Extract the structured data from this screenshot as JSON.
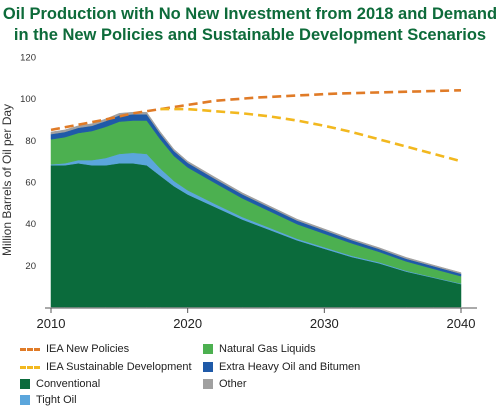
{
  "title_line1": "Oil Production with No New Investment from 2018 and Demand",
  "title_line2": "in the New Policies and Sustainable Development Scenarios",
  "chart_data": {
    "type": "area",
    "title": "Oil Production with No New Investment from 2018 and Demand in the New Policies and Sustainable Development Scenarios",
    "ylabel": "Million Barrels of Oil per Day",
    "xlabel": "",
    "xlim": [
      2010,
      2040
    ],
    "ylim": [
      0,
      120
    ],
    "yticks": [
      20,
      40,
      60,
      80,
      100,
      120
    ],
    "xticks": [
      2010,
      2020,
      2030,
      2040
    ],
    "grid": false,
    "legend_position": "bottom",
    "x": [
      2010,
      2011,
      2012,
      2013,
      2014,
      2015,
      2016,
      2017,
      2018,
      2019,
      2020,
      2022,
      2024,
      2026,
      2028,
      2030,
      2032,
      2034,
      2036,
      2038,
      2040
    ],
    "stacked_series": [
      {
        "name": "Conventional",
        "color": "#0b6b3c",
        "values": [
          68,
          68,
          69,
          68,
          68,
          69,
          69,
          68,
          63,
          58,
          54,
          48,
          42,
          37,
          32,
          28,
          24,
          21,
          17,
          14,
          11
        ]
      },
      {
        "name": "Tight Oil",
        "color": "#5ba6dc",
        "values": [
          0.5,
          1,
          1.5,
          2.5,
          3.5,
          4.5,
          5,
          5.5,
          3.5,
          2.5,
          2,
          1.5,
          1.2,
          1,
          0.8,
          0.7,
          0.6,
          0.5,
          0.4,
          0.3,
          0.3
        ]
      },
      {
        "name": "Natural Gas Liquids",
        "color": "#4cb050",
        "values": [
          12,
          12.5,
          13,
          14,
          15,
          15.5,
          15.5,
          16,
          14,
          12,
          11,
          10,
          9,
          8,
          7,
          6.5,
          6,
          5,
          4.5,
          4,
          3.5
        ]
      },
      {
        "name": "Extra Heavy Oil and Bitumen",
        "color": "#1f5aa8",
        "values": [
          2.5,
          2.5,
          2.5,
          2.5,
          2.8,
          3,
          3,
          3,
          2.7,
          2.4,
          2.2,
          2,
          1.9,
          1.8,
          1.7,
          1.6,
          1.5,
          1.4,
          1.3,
          1.3,
          1.2
        ]
      },
      {
        "name": "Other",
        "color": "#a0a0a0",
        "values": [
          1,
          1,
          1,
          1,
          1,
          1,
          1,
          1,
          0.9,
          0.8,
          0.8,
          0.8,
          0.7,
          0.7,
          0.7,
          0.7,
          0.6,
          0.6,
          0.6,
          0.5,
          0.5
        ]
      }
    ],
    "line_series": [
      {
        "name": "IEA New Policies",
        "color": "#e07b27",
        "dash": "long",
        "x": [
          2010,
          2012,
          2014,
          2016,
          2018,
          2020,
          2022,
          2025,
          2028,
          2031,
          2034,
          2037,
          2040
        ],
        "values": [
          85,
          87.5,
          90,
          93,
          95,
          97,
          99,
          100.5,
          101.5,
          102.5,
          103,
          103.5,
          104
        ]
      },
      {
        "name": "IEA Sustainable Development",
        "color": "#f2b81f",
        "dash": "long",
        "x": [
          2018,
          2020,
          2022,
          2024,
          2026,
          2028,
          2030,
          2032,
          2034,
          2036,
          2038,
          2040
        ],
        "values": [
          95,
          95,
          94,
          93,
          91.5,
          89.5,
          87,
          84,
          80.5,
          77,
          73.5,
          70
        ]
      }
    ]
  },
  "legend": {
    "items": [
      {
        "label": "IEA New Policies",
        "kind": "dash",
        "color": "#e07b27"
      },
      {
        "label": "IEA Sustainable Development",
        "kind": "dash",
        "color": "#f2b81f"
      },
      {
        "label": "Conventional",
        "kind": "box",
        "color": "#0b6b3c"
      },
      {
        "label": "Tight Oil",
        "kind": "box",
        "color": "#5ba6dc"
      },
      {
        "label": "Natural Gas Liquids",
        "kind": "box",
        "color": "#4cb050"
      },
      {
        "label": "Extra Heavy Oil and Bitumen",
        "kind": "box",
        "color": "#1f5aa8"
      },
      {
        "label": "Other",
        "kind": "box",
        "color": "#a0a0a0"
      }
    ]
  }
}
